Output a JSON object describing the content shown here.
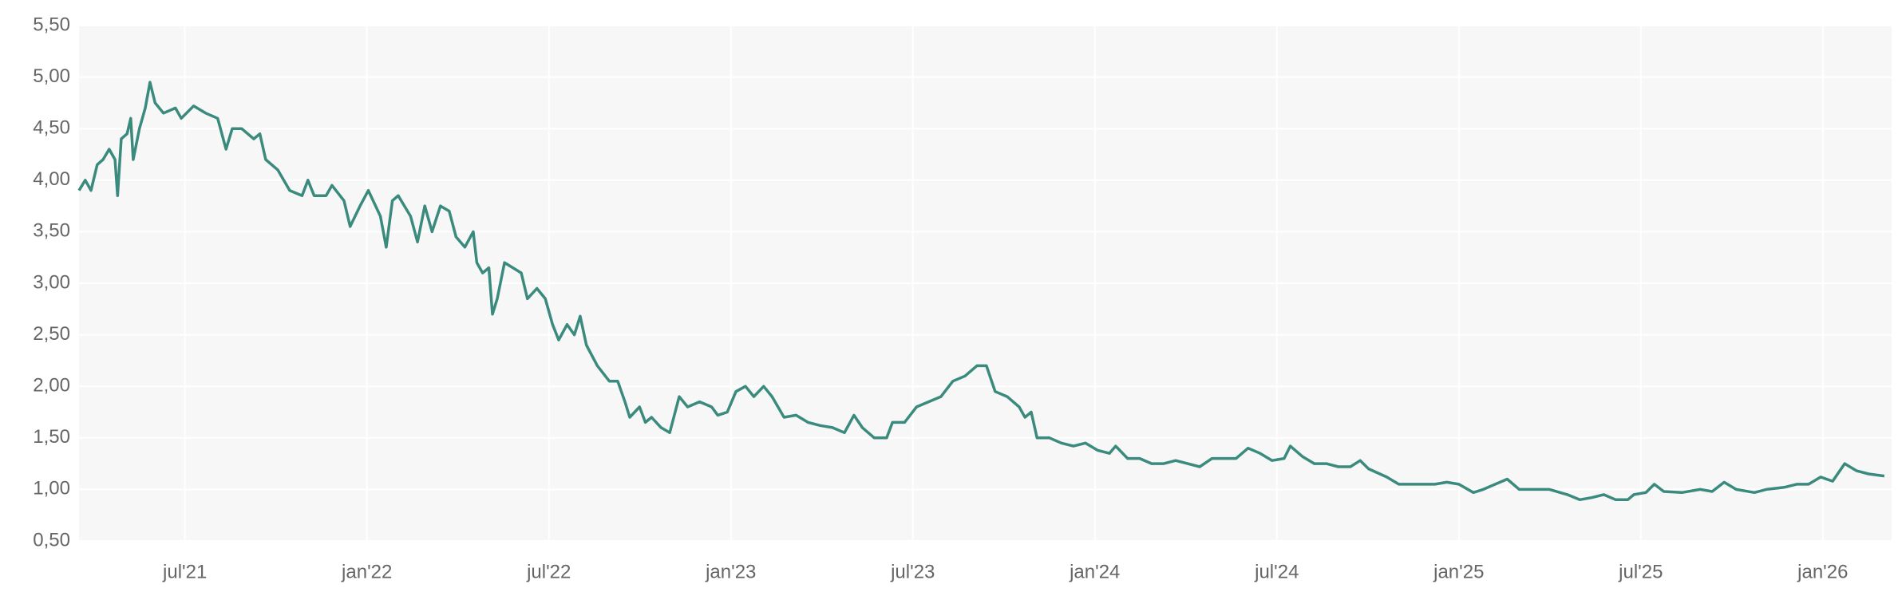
{
  "chart_data": {
    "type": "line",
    "x": [
      2021.209,
      2021.226,
      2021.242,
      2021.259,
      2021.275,
      2021.292,
      2021.308,
      2021.315,
      2021.325,
      2021.341,
      2021.351,
      2021.358,
      2021.375,
      2021.391,
      2021.404,
      2021.418,
      2021.441,
      2021.474,
      2021.49,
      2021.524,
      2021.557,
      2021.59,
      2021.613,
      2021.63,
      2021.656,
      2021.689,
      2021.706,
      2021.722,
      2021.755,
      2021.788,
      2021.822,
      2021.838,
      2021.855,
      2021.888,
      2021.904,
      2021.937,
      2021.954,
      2021.981,
      2022.004,
      2022.037,
      2022.053,
      2022.07,
      2022.086,
      2022.12,
      2022.139,
      2022.159,
      2022.179,
      2022.202,
      2022.226,
      2022.245,
      2022.269,
      2022.292,
      2022.302,
      2022.318,
      2022.335,
      2022.345,
      2022.358,
      2022.378,
      2022.401,
      2022.424,
      2022.441,
      2022.467,
      2022.49,
      2022.51,
      2022.527,
      2022.55,
      2022.57,
      2022.586,
      2022.603,
      2022.633,
      2022.666,
      2022.689,
      2022.709,
      2022.722,
      2022.749,
      2022.765,
      2022.782,
      2022.808,
      2022.832,
      2022.858,
      2022.881,
      2022.914,
      2022.947,
      2022.964,
      2022.99,
      2023.014,
      2023.04,
      2023.063,
      2023.09,
      2023.113,
      2023.146,
      2023.179,
      2023.212,
      2023.245,
      2023.279,
      2023.312,
      2023.338,
      2023.361,
      2023.394,
      2023.428,
      2023.444,
      2023.477,
      2023.51,
      2023.543,
      2023.577,
      2023.61,
      2023.643,
      2023.676,
      2023.702,
      2023.726,
      2023.759,
      2023.792,
      2023.808,
      2023.825,
      2023.841,
      2023.875,
      2023.908,
      2023.941,
      2023.974,
      2024.007,
      2024.04,
      2024.057,
      2024.09,
      2024.123,
      2024.156,
      2024.189,
      2024.222,
      2024.255,
      2024.288,
      2024.322,
      2024.355,
      2024.388,
      2024.421,
      2024.454,
      2024.487,
      2024.52,
      2024.537,
      2024.57,
      2024.603,
      2024.636,
      2024.669,
      2024.702,
      2024.729,
      2024.752,
      2024.802,
      2024.835,
      2024.868,
      2024.901,
      2024.934,
      2024.967,
      2025.0,
      2025.04,
      2025.067,
      2025.1,
      2025.133,
      2025.166,
      2025.199,
      2025.249,
      2025.298,
      2025.332,
      2025.365,
      2025.398,
      2025.431,
      2025.464,
      2025.481,
      2025.514,
      2025.537,
      2025.563,
      2025.613,
      2025.663,
      2025.696,
      2025.729,
      2025.762,
      2025.812,
      2025.845,
      2025.894,
      2025.928,
      2025.961,
      2025.994,
      2026.027,
      2026.06,
      2026.093,
      2026.126,
      2026.169
    ],
    "series": [
      {
        "color": "#3b8a7e",
        "values": [
          3.9,
          4.0,
          3.9,
          4.15,
          4.2,
          4.3,
          4.2,
          3.85,
          4.4,
          4.45,
          4.6,
          4.2,
          4.5,
          4.7,
          4.95,
          4.75,
          4.65,
          4.7,
          4.6,
          4.72,
          4.65,
          4.6,
          4.3,
          4.5,
          4.5,
          4.4,
          4.45,
          4.2,
          4.1,
          3.9,
          3.85,
          4.0,
          3.85,
          3.85,
          3.95,
          3.8,
          3.55,
          3.75,
          3.9,
          3.65,
          3.35,
          3.8,
          3.85,
          3.65,
          3.4,
          3.75,
          3.5,
          3.75,
          3.7,
          3.45,
          3.35,
          3.5,
          3.2,
          3.1,
          3.15,
          2.7,
          2.85,
          3.2,
          3.15,
          3.1,
          2.85,
          2.95,
          2.85,
          2.6,
          2.45,
          2.6,
          2.5,
          2.68,
          2.4,
          2.2,
          2.05,
          2.05,
          1.85,
          1.7,
          1.8,
          1.65,
          1.7,
          1.6,
          1.55,
          1.9,
          1.8,
          1.85,
          1.8,
          1.72,
          1.75,
          1.95,
          2.0,
          1.9,
          2.0,
          1.9,
          1.7,
          1.72,
          1.65,
          1.62,
          1.6,
          1.55,
          1.72,
          1.6,
          1.5,
          1.5,
          1.65,
          1.65,
          1.8,
          1.85,
          1.9,
          2.05,
          2.1,
          2.2,
          2.2,
          1.95,
          1.9,
          1.8,
          1.7,
          1.75,
          1.5,
          1.5,
          1.45,
          1.42,
          1.45,
          1.38,
          1.35,
          1.42,
          1.3,
          1.3,
          1.25,
          1.25,
          1.28,
          1.25,
          1.22,
          1.3,
          1.3,
          1.3,
          1.4,
          1.35,
          1.28,
          1.3,
          1.42,
          1.32,
          1.25,
          1.25,
          1.22,
          1.22,
          1.28,
          1.2,
          1.12,
          1.05,
          1.05,
          1.05,
          1.05,
          1.07,
          1.05,
          0.97,
          1.0,
          1.05,
          1.1,
          1.0,
          1.0,
          1.0,
          0.95,
          0.9,
          0.92,
          0.95,
          0.9,
          0.9,
          0.95,
          0.97,
          1.05,
          0.98,
          0.97,
          1.0,
          0.98,
          1.07,
          1.0,
          0.97,
          1.0,
          1.02,
          1.05,
          1.05,
          1.12,
          1.08,
          1.25,
          1.18,
          1.15,
          1.13
        ]
      }
    ],
    "xlim": [
      2021.209,
      2026.189
    ],
    "xticks": [
      {
        "value": 2021.5,
        "label": "jul'21"
      },
      {
        "value": 2022,
        "label": "jan'22"
      },
      {
        "value": 2022.5,
        "label": "jul'22"
      },
      {
        "value": 2023,
        "label": "jan'23"
      },
      {
        "value": 2023.5,
        "label": "jul'23"
      },
      {
        "value": 2024,
        "label": "jan'24"
      },
      {
        "value": 2024.5,
        "label": "jul'24"
      },
      {
        "value": 2025,
        "label": "jan'25"
      },
      {
        "value": 2025.5,
        "label": "jul'25"
      },
      {
        "value": 2026,
        "label": "jan'26"
      }
    ],
    "ylim": [
      0.5,
      5.5
    ],
    "yticks": [
      {
        "value": 0.5,
        "label": "0,50"
      },
      {
        "value": 1,
        "label": "1,00"
      },
      {
        "value": 1.5,
        "label": "1,50"
      },
      {
        "value": 2,
        "label": "2,00"
      },
      {
        "value": 2.5,
        "label": "2,50"
      },
      {
        "value": 3,
        "label": "3,00"
      },
      {
        "value": 3.5,
        "label": "3,50"
      },
      {
        "value": 4,
        "label": "4,00"
      },
      {
        "value": 4.5,
        "label": "4,50"
      },
      {
        "value": 5,
        "label": "5,00"
      },
      {
        "value": 5.5,
        "label": "5,50"
      }
    ],
    "grid": true
  }
}
